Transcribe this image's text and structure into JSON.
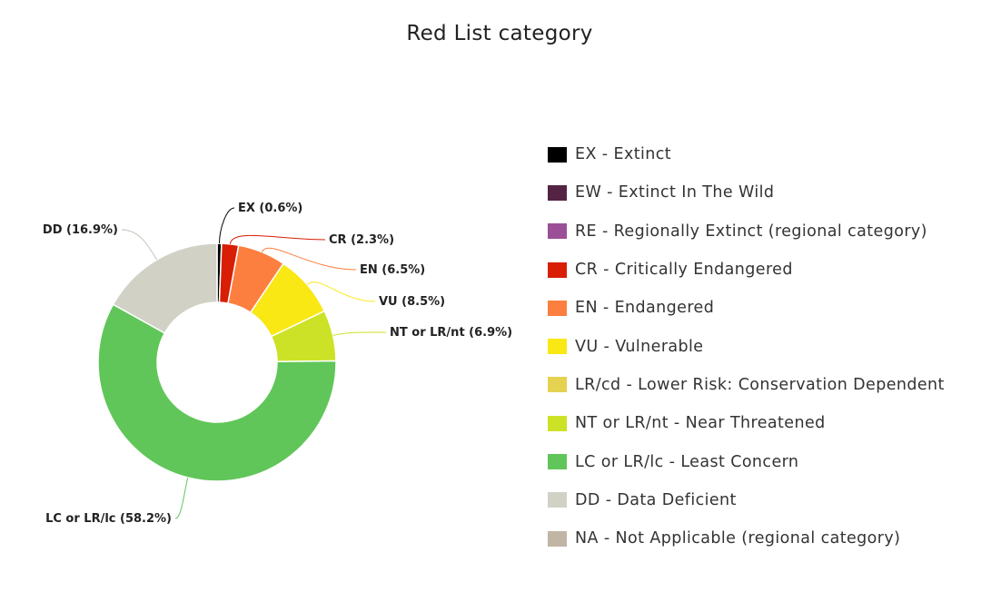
{
  "chart_data": {
    "type": "pie",
    "title": "Red List category",
    "donut": true,
    "slices": [
      {
        "name": "EX",
        "label": "EX (0.6%)",
        "value": 0.6,
        "color": "#000000"
      },
      {
        "name": "CR",
        "label": "CR (2.3%)",
        "value": 2.3,
        "color": "#d81e05"
      },
      {
        "name": "EN",
        "label": "EN (6.5%)",
        "value": 6.5,
        "color": "#fc7f3f"
      },
      {
        "name": "VU",
        "label": "VU (8.5%)",
        "value": 8.5,
        "color": "#f9e814"
      },
      {
        "name": "NT or LR/nt",
        "label": "NT or LR/nt (6.9%)",
        "value": 6.9,
        "color": "#cce226"
      },
      {
        "name": "LC or LR/lc",
        "label": "LC or LR/lc (58.2%)",
        "value": 58.2,
        "color": "#60c659"
      },
      {
        "name": "DD",
        "label": "DD (16.9%)",
        "value": 16.9,
        "color": "#d1d1c6"
      }
    ],
    "legend": {
      "position": "right",
      "items": [
        {
          "label": "EX - Extinct",
          "color": "#000000"
        },
        {
          "label": "EW - Extinct In The Wild",
          "color": "#542344"
        },
        {
          "label": "RE - Regionally Extinct (regional category)",
          "color": "#9b4f96"
        },
        {
          "label": "CR - Critically Endangered",
          "color": "#d81e05"
        },
        {
          "label": "EN - Endangered",
          "color": "#fc7f3f"
        },
        {
          "label": "VU - Vulnerable",
          "color": "#f9e814"
        },
        {
          "label": "LR/cd - Lower Risk: Conservation Dependent",
          "color": "#e5d250"
        },
        {
          "label": "NT or LR/nt - Near Threatened",
          "color": "#cce226"
        },
        {
          "label": "LC or LR/lc - Least Concern",
          "color": "#60c659"
        },
        {
          "label": "DD - Data Deficient",
          "color": "#d1d1c6"
        },
        {
          "label": "NA - Not Applicable (regional category)",
          "color": "#c1b5a5"
        }
      ]
    }
  }
}
